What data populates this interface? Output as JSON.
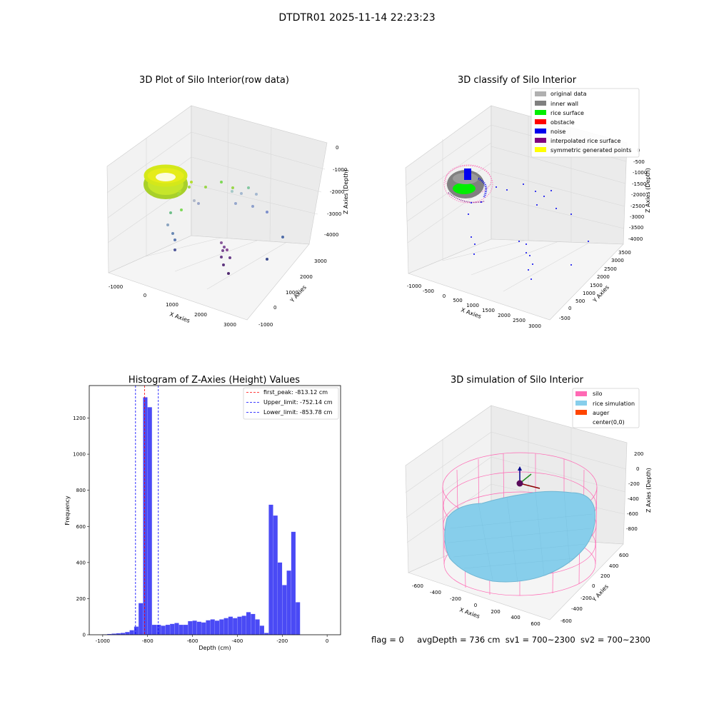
{
  "figure_title": "DTDTR01 2025-11-14 22:23:23",
  "panels": {
    "raw": {
      "title": "3D Plot of Silo Interior(row data)",
      "xlabel": "X Axies",
      "ylabel": "Y Axies",
      "zlabel": "Z Axies (Depth)",
      "x_ticks": [
        "-1000",
        "0",
        "1000",
        "2000",
        "3000"
      ],
      "y_ticks": [
        "-1000",
        "0",
        "1000",
        "2000",
        "3000"
      ],
      "z_ticks": [
        "0",
        "-1000",
        "-2000",
        "-3000",
        "-4000"
      ]
    },
    "classify": {
      "title": "3D classify of Silo Interior",
      "xlabel": "X Axies",
      "ylabel": "Y Axies",
      "zlabel": "Z Axies (Depth)",
      "x_ticks": [
        "-1000",
        "-500",
        "0",
        "500",
        "1000",
        "1500",
        "2000",
        "2500",
        "3000"
      ],
      "y_ticks": [
        "-500",
        "0",
        "500",
        "1000",
        "1500",
        "2000",
        "2500",
        "3000",
        "3500"
      ],
      "z_ticks": [
        "0",
        "-500",
        "-1000",
        "-1500",
        "-2000",
        "-2500",
        "-3000",
        "-3500",
        "-4000"
      ],
      "legend": [
        {
          "label": "original data",
          "color": "#b0b0b0"
        },
        {
          "label": "inner wall",
          "color": "#808080"
        },
        {
          "label": "rice surface",
          "color": "#00ee00"
        },
        {
          "label": "obstacle",
          "color": "#ff0000"
        },
        {
          "label": "noise",
          "color": "#0000ee"
        },
        {
          "label": "interpolated rice surface",
          "color": "#800080"
        },
        {
          "label": "symmetric generated points",
          "color": "#ffff00"
        }
      ]
    },
    "simulation": {
      "title": "3D simulation of Silo Interior",
      "xlabel": "X Axies",
      "ylabel": "Y Axies",
      "zlabel": "Z Axies (Depth)",
      "x_ticks": [
        "-600",
        "-400",
        "-200",
        "0",
        "200",
        "400",
        "600"
      ],
      "y_ticks": [
        "-600",
        "-400",
        "-200",
        "0",
        "200",
        "400",
        "600"
      ],
      "z_ticks": [
        "200",
        "0",
        "-200",
        "-400",
        "-600",
        "-800"
      ],
      "legend": [
        {
          "label": "silo",
          "color": "#ff69b4"
        },
        {
          "label": "rice simulation",
          "color": "#87ceeb"
        },
        {
          "label": "auger",
          "color": "#ff4500"
        },
        {
          "label": "center(0,0)",
          "color": ""
        }
      ]
    }
  },
  "info": {
    "flag": "flag = 0",
    "avg": "avgDepth = 736 cm",
    "sv1": "sv1 = 700~2300",
    "sv2": "sv2 = 700~2300"
  },
  "chart_data": {
    "type": "bar",
    "title": "Histogram of Z-Axies (Height) Values",
    "xlabel": "Depth (cm)",
    "ylabel": "Frequency",
    "xlim": [
      -1060,
      60
    ],
    "ylim": [
      0,
      1380
    ],
    "x_ticks": [
      -1000,
      -800,
      -600,
      -400,
      -200,
      0
    ],
    "y_ticks": [
      0,
      200,
      400,
      600,
      800,
      1000,
      1200
    ],
    "bin_width": 20,
    "bins": [
      [
        -1000,
        2
      ],
      [
        -980,
        4
      ],
      [
        -960,
        6
      ],
      [
        -940,
        8
      ],
      [
        -920,
        10
      ],
      [
        -900,
        15
      ],
      [
        -880,
        25
      ],
      [
        -860,
        45
      ],
      [
        -840,
        175
      ],
      [
        -820,
        1315
      ],
      [
        -800,
        1260
      ],
      [
        -780,
        55
      ],
      [
        -760,
        55
      ],
      [
        -740,
        50
      ],
      [
        -720,
        55
      ],
      [
        -700,
        60
      ],
      [
        -680,
        65
      ],
      [
        -660,
        55
      ],
      [
        -640,
        55
      ],
      [
        -620,
        75
      ],
      [
        -600,
        78
      ],
      [
        -580,
        72
      ],
      [
        -560,
        68
      ],
      [
        -540,
        80
      ],
      [
        -520,
        85
      ],
      [
        -500,
        78
      ],
      [
        -480,
        85
      ],
      [
        -460,
        92
      ],
      [
        -440,
        100
      ],
      [
        -420,
        92
      ],
      [
        -400,
        100
      ],
      [
        -380,
        105
      ],
      [
        -360,
        125
      ],
      [
        -340,
        115
      ],
      [
        -320,
        85
      ],
      [
        -300,
        50
      ],
      [
        -280,
        10
      ],
      [
        -260,
        720
      ],
      [
        -240,
        660
      ],
      [
        -220,
        400
      ],
      [
        -200,
        275
      ],
      [
        -180,
        355
      ],
      [
        -160,
        570
      ],
      [
        -140,
        180
      ]
    ],
    "vlines": [
      {
        "label": "first_peak: -813.12 cm",
        "x": -813.12,
        "color": "#ff0000"
      },
      {
        "label": "Upper_limit: -752.14 cm",
        "x": -752.14,
        "color": "#0000ff"
      },
      {
        "label": "Lower_limit: -853.78 cm",
        "x": -853.78,
        "color": "#0000ff"
      }
    ],
    "bar_color": "#4a4af5"
  }
}
